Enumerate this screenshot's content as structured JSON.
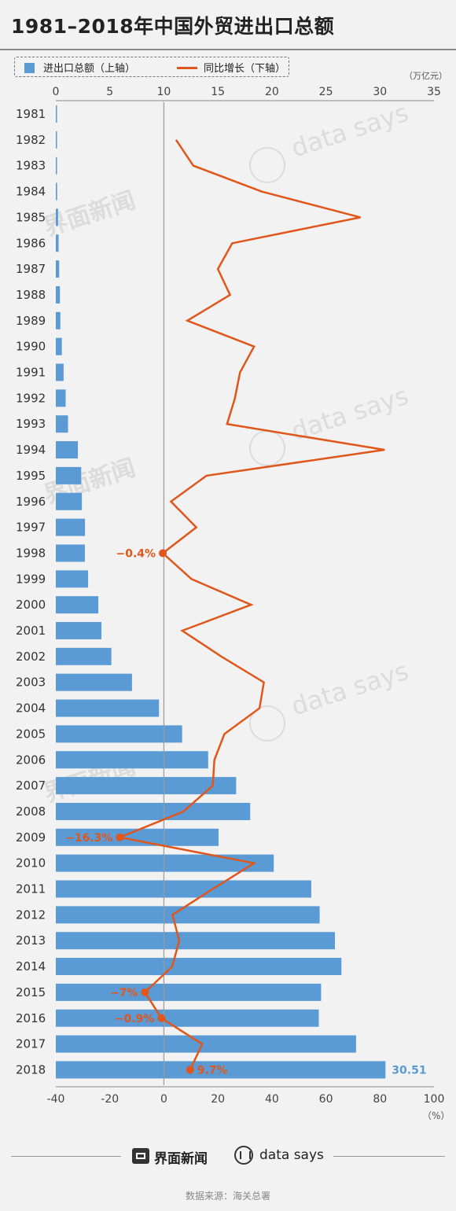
{
  "title": "1981–2018年中国外贸进出口总额",
  "legend": {
    "bar": "进出口总额（上轴）",
    "line": "同比增长（下轴）"
  },
  "unit_top": "（万亿元）",
  "unit_bottom": "（%）",
  "footer": {
    "brand_left": "界面新闻",
    "brand_right": "data says",
    "source": "数据来源：海关总署"
  },
  "colors": {
    "bar": "#5b9bd5",
    "line": "#e0561b",
    "label_blue": "#5b9bd5",
    "background": "#f2f2f2"
  },
  "chart_data": {
    "type": "bar",
    "title": "1981–2018年中国外贸进出口总额",
    "categories": [
      "1981",
      "1982",
      "1983",
      "1984",
      "1985",
      "1986",
      "1987",
      "1988",
      "1989",
      "1990",
      "1991",
      "1992",
      "1993",
      "1994",
      "1995",
      "1996",
      "1997",
      "1998",
      "1999",
      "2000",
      "2001",
      "2002",
      "2003",
      "2004",
      "2005",
      "2006",
      "2007",
      "2008",
      "2009",
      "2010",
      "2011",
      "2012",
      "2013",
      "2014",
      "2015",
      "2016",
      "2017",
      "2018"
    ],
    "top_axis": {
      "range": [
        0,
        35
      ],
      "ticks": [
        0,
        5,
        10,
        15,
        20,
        25,
        30,
        35
      ],
      "unit": "万亿元"
    },
    "bottom_axis": {
      "range": [
        -40,
        100
      ],
      "ticks": [
        -40,
        -20,
        0,
        20,
        40,
        60,
        80,
        100
      ],
      "unit": "%"
    },
    "series": [
      {
        "name": "进出口总额（上轴）",
        "type": "bar",
        "axis": "top",
        "values": [
          0.07,
          0.08,
          0.09,
          0.12,
          0.21,
          0.26,
          0.31,
          0.38,
          0.42,
          0.56,
          0.72,
          0.91,
          1.13,
          2.04,
          2.35,
          2.41,
          2.7,
          2.69,
          2.99,
          3.93,
          4.22,
          5.14,
          7.05,
          9.55,
          11.69,
          14.1,
          16.69,
          17.99,
          15.06,
          20.17,
          23.64,
          24.42,
          25.83,
          26.43,
          24.55,
          24.34,
          27.79,
          30.51
        ]
      },
      {
        "name": "同比增长（下轴）",
        "type": "line",
        "axis": "bottom",
        "values": [
          null,
          4.5,
          10.9,
          36.2,
          72.8,
          25.3,
          20.0,
          24.5,
          8.7,
          33.4,
          28.2,
          26.3,
          23.4,
          81.7,
          15.8,
          2.6,
          12.0,
          -0.4,
          10.2,
          32.3,
          6.8,
          21.3,
          37.0,
          35.4,
          22.4,
          18.7,
          18.1,
          7.2,
          -16.3,
          33.4,
          18.1,
          3.2,
          5.7,
          3.1,
          -7.0,
          -0.9,
          14.2,
          9.7
        ]
      }
    ],
    "annotations": [
      {
        "year": "1998",
        "text": "−0.4%"
      },
      {
        "year": "2009",
        "text": "−16.3%"
      },
      {
        "year": "2015",
        "text": "−7%"
      },
      {
        "year": "2016",
        "text": "−0.9%"
      },
      {
        "year": "2018",
        "text": "9.7%"
      },
      {
        "year": "2018",
        "text": "30.51",
        "series": "bar"
      }
    ],
    "grid": false,
    "legend_position": "top-left"
  }
}
